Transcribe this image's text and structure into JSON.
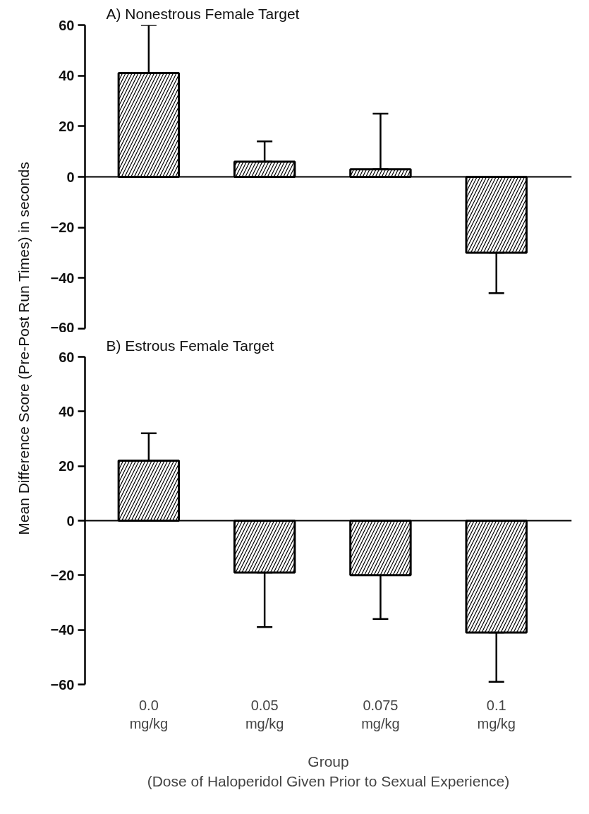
{
  "chart_data": [
    {
      "type": "bar",
      "title": "A)  Nonestrous Female Target",
      "ylabel": "Mean Difference Score (Pre-Post Run Times) in seconds",
      "categories": [
        null,
        null,
        null,
        null
      ],
      "series": [
        {
          "color": "#000000",
          "values": [
            41,
            6,
            3,
            -30
          ],
          "errors": [
            [
              41,
              60
            ],
            [
              6,
              14
            ],
            [
              3,
              25
            ],
            [
              -46,
              -30
            ]
          ]
        }
      ],
      "ylim": [
        -60,
        60
      ],
      "yticks": [
        {
          "value": -60,
          "label": "−60"
        },
        {
          "value": -40,
          "label": "−40"
        },
        {
          "value": -20,
          "label": "−20"
        },
        0,
        20,
        40,
        60
      ],
      "ref_lines": [
        {
          "axis": "y",
          "value": 0
        }
      ],
      "tick_labels": "y",
      "grid": false
    },
    {
      "type": "bar",
      "title": "B)  Estrous Female Target",
      "xlabel": "Group\n(Dose of Haloperidol Given Prior to Sexual Experience)",
      "categories": [
        "0.0\nmg/kg",
        "0.05\nmg/kg",
        "0.075\nmg/kg",
        "0.1\nmg/kg"
      ],
      "series": [
        {
          "color": "#000000",
          "values": [
            22,
            -19,
            -20,
            -41
          ],
          "errors": [
            [
              22,
              32
            ],
            [
              -39,
              -19
            ],
            [
              -36,
              -20
            ],
            [
              -59,
              -41
            ]
          ]
        }
      ],
      "ylim": [
        -60,
        60
      ],
      "yticks": [
        {
          "value": -60,
          "label": "−60"
        },
        {
          "value": -40,
          "label": "−40"
        },
        {
          "value": -20,
          "label": "−20"
        },
        0,
        20,
        40,
        60
      ],
      "ref_lines": [
        {
          "axis": "y",
          "value": 0
        }
      ],
      "grid": false
    }
  ]
}
